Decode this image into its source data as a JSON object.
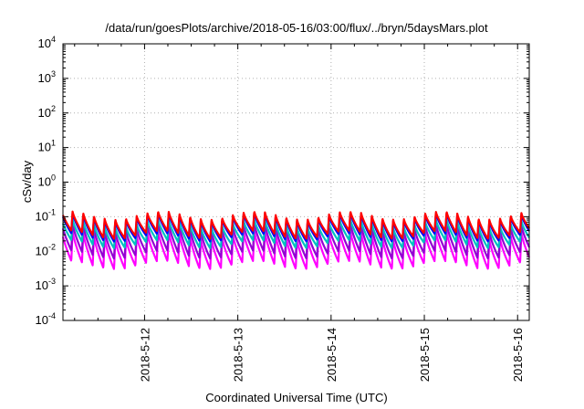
{
  "chart_data": {
    "type": "line",
    "title": "/data/run/goesPlots/archive/2018-05-16/03:00/flux/../bryn/5daysMars.plot",
    "xlabel": "Coordinated Universal Time (UTC)",
    "ylabel": "cSv/day",
    "yscale": "log",
    "ylim": [
      0.0001,
      10000
    ],
    "yticks": [
      {
        "value": 0.0001,
        "base": "10",
        "exp": "-4"
      },
      {
        "value": 0.001,
        "base": "10",
        "exp": "-3"
      },
      {
        "value": 0.01,
        "base": "10",
        "exp": "-2"
      },
      {
        "value": 0.1,
        "base": "10",
        "exp": "-1"
      },
      {
        "value": 1,
        "base": "10",
        "exp": "0"
      },
      {
        "value": 10,
        "base": "10",
        "exp": "1"
      },
      {
        "value": 100,
        "base": "10",
        "exp": "2"
      },
      {
        "value": 1000,
        "base": "10",
        "exp": "3"
      },
      {
        "value": 10000,
        "base": "10",
        "exp": "4"
      }
    ],
    "xlim": [
      "2018-05-11 03:00",
      "2018-05-16 03:00"
    ],
    "xticks": [
      "2018-5-12",
      "2018-5-13",
      "2018-5-14",
      "2018-5-15",
      "2018-5-16"
    ],
    "grid": true,
    "legend": "none",
    "cycle": {
      "period_hours": 2.75,
      "pattern": "rapid rise to peak then decay to trough each cycle"
    },
    "series": [
      {
        "color": "#ff0000",
        "peak": 0.11,
        "trough": 0.03
      },
      {
        "color": "#0000ff",
        "peak": 0.1,
        "trough": 0.025
      },
      {
        "color": "#00c0c0",
        "peak": 0.065,
        "trough": 0.016
      },
      {
        "color": "#9400d3",
        "peak": 0.05,
        "trough": 0.008
      },
      {
        "color": "#ff00ff",
        "peak": 0.03,
        "trough": 0.004
      }
    ]
  }
}
